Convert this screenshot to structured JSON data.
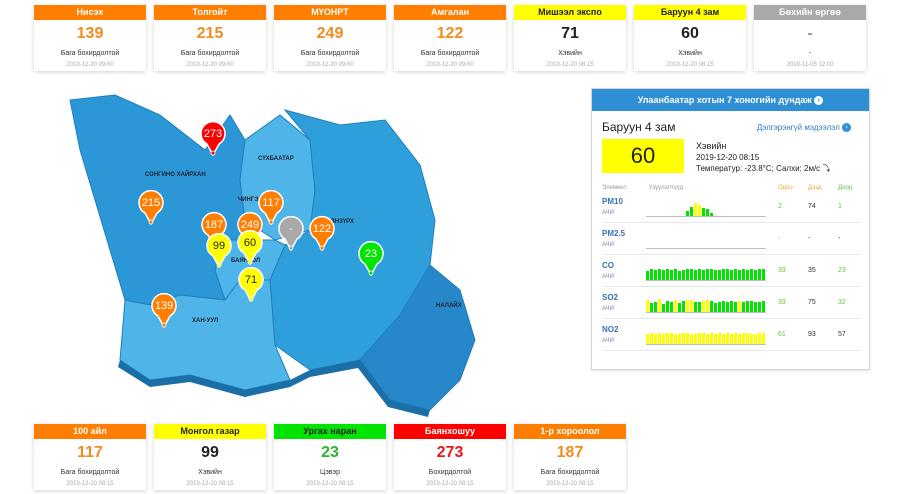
{
  "colors": {
    "good": "#00e400",
    "moderate": "#ffff00",
    "unhealthy_sensitive": "#ff7e00",
    "unhealthy": "#ff0000",
    "offline": "#a9a9a9",
    "map_light": "#4fb4e8",
    "map_mid": "#2c97d6",
    "map_dark": "#2788c9",
    "panel_header": "#2e8fd5"
  },
  "top_cards": [
    {
      "name": "Нисэх",
      "value": "139",
      "level": "Бага бохирдолтой",
      "date": "2019-12-20 09:00"
    },
    {
      "name": "Толгойт",
      "value": "215",
      "level": "Бага бохирдолтой",
      "date": "2019-12-20 09:00"
    },
    {
      "name": "МҮОНРТ",
      "value": "249",
      "level": "Бага бохирдолтой",
      "date": "2019-12-20 09:00"
    },
    {
      "name": "Амгалан",
      "value": "122",
      "level": "Бага бохирдолтой",
      "date": "2019-12-20 09:00"
    },
    {
      "name": "Мишээл экспо",
      "value": "71",
      "level": "Хэвийн",
      "date": "2019-12-20 08:15"
    },
    {
      "name": "Баруун 4 зам",
      "value": "60",
      "level": "Хэвийн",
      "date": "2019-12-20 08:15"
    },
    {
      "name": "Бөхийн өргөө",
      "value": "-",
      "level": "-",
      "date": "2019-11-05 12:00"
    }
  ],
  "bottom_cards": [
    {
      "name": "100 айл",
      "value": "117",
      "level": "Бага бохирдолтой",
      "date": "2019-12-20 08:15"
    },
    {
      "name": "Монгол газар",
      "value": "99",
      "level": "Хэвийн",
      "date": "2019-12-20 08:15"
    },
    {
      "name": "Ургах наран",
      "value": "23",
      "level": "Цэвэр",
      "date": "2019-12-20 08:15"
    },
    {
      "name": "Баянхошуу",
      "value": "273",
      "level": "Бохирдолтой",
      "date": "2019-12-20 08:15"
    },
    {
      "name": "1-р хороолол",
      "value": "187",
      "level": "Бага бохирдолтой",
      "date": "2019-12-20 08:15"
    }
  ],
  "map": {
    "districts": [
      "СОНГИНО ХАЙРХАН",
      "СҮХБААТАР",
      "ЧИНГЭЛТЭЙ",
      "БАЯНЗҮРХ",
      "БАЯНГОЛ",
      "ХАН-УУЛ",
      "НАЛАЙХ"
    ],
    "markers": [
      {
        "value": "273",
        "level": "unhealthy"
      },
      {
        "value": "215",
        "level": "unhealthy_sensitive"
      },
      {
        "value": "187",
        "level": "unhealthy_sensitive"
      },
      {
        "value": "249",
        "level": "unhealthy_sensitive"
      },
      {
        "value": "117",
        "level": "unhealthy_sensitive"
      },
      {
        "value": "99",
        "level": "moderate"
      },
      {
        "value": "60",
        "level": "moderate"
      },
      {
        "value": "-",
        "level": "offline"
      },
      {
        "value": "122",
        "level": "unhealthy_sensitive"
      },
      {
        "value": "23",
        "level": "good"
      },
      {
        "value": "71",
        "level": "moderate"
      },
      {
        "value": "139",
        "level": "unhealthy_sensitive"
      }
    ]
  },
  "panel": {
    "title": "Улаанбаатар хотын 7 хоногийн дундаж",
    "station": "Баруун 4 зам",
    "more_link": "Дэлгэрэнгүй мэдээлэл",
    "aqi": "60",
    "status": "Хэвийн",
    "datetime": "2019-12-20 08:15",
    "weather": "Температур: -23.8°C; Салхи: 2м/с",
    "headers": {
      "element": "Элемент",
      "indicator": "Үзүүлэлтүүд",
      "now": "Одоо",
      "max": "Дээд",
      "min": "Доод"
    },
    "pollutants": [
      {
        "name": "PM10",
        "unit": "АЧИ",
        "now": "2",
        "max": "74",
        "min": "1",
        "bars": [
          0,
          0,
          0,
          0,
          0,
          0,
          0,
          0,
          0,
          0,
          30,
          55,
          75,
          62,
          50,
          40,
          20,
          0,
          0,
          0,
          0,
          0,
          0,
          0,
          0,
          0,
          0,
          0,
          0,
          0
        ]
      },
      {
        "name": "PM2.5",
        "unit": "АЧИ",
        "now": "-",
        "max": "-",
        "min": "-",
        "bars": []
      },
      {
        "name": "CO",
        "unit": "АЧИ",
        "now": "33",
        "max": "35",
        "min": "23",
        "bars": [
          55,
          62,
          58,
          66,
          60,
          64,
          58,
          62,
          55,
          60,
          66,
          62,
          58,
          64,
          60,
          62,
          66,
          58,
          60,
          62,
          66,
          58,
          64,
          60,
          62,
          58,
          66,
          60,
          62,
          64
        ]
      },
      {
        "name": "SO2",
        "unit": "АЧИ",
        "now": "33",
        "max": "75",
        "min": "32",
        "bars": [
          70,
          55,
          60,
          75,
          50,
          65,
          60,
          70,
          55,
          62,
          68,
          72,
          60,
          58,
          66,
          70,
          62,
          55,
          60,
          64,
          58,
          62,
          60,
          66,
          58,
          62,
          64,
          60,
          58,
          62
        ]
      },
      {
        "name": "NO2",
        "unit": "АЧИ",
        "now": "61",
        "max": "93",
        "min": "57",
        "bars": [
          60,
          62,
          58,
          64,
          60,
          62,
          66,
          58,
          60,
          62,
          64,
          60,
          58,
          62,
          66,
          60,
          62,
          58,
          64,
          60,
          62,
          58,
          66,
          60,
          62,
          64,
          58,
          60,
          62,
          64
        ]
      }
    ]
  }
}
